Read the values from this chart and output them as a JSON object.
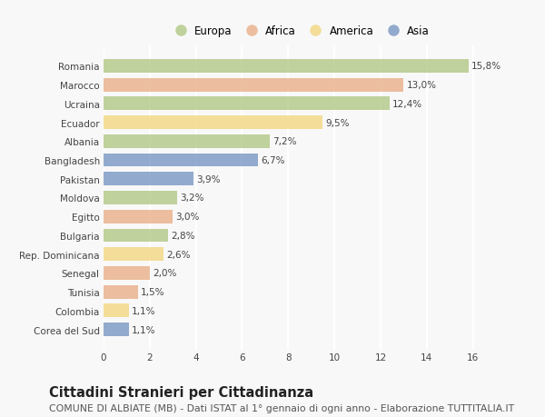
{
  "countries": [
    "Romania",
    "Marocco",
    "Ucraina",
    "Ecuador",
    "Albania",
    "Bangladesh",
    "Pakistan",
    "Moldova",
    "Egitto",
    "Bulgaria",
    "Rep. Dominicana",
    "Senegal",
    "Tunisia",
    "Colombia",
    "Corea del Sud"
  ],
  "values": [
    15.8,
    13.0,
    12.4,
    9.5,
    7.2,
    6.7,
    3.9,
    3.2,
    3.0,
    2.8,
    2.6,
    2.0,
    1.5,
    1.1,
    1.1
  ],
  "labels": [
    "15,8%",
    "13,0%",
    "12,4%",
    "9,5%",
    "7,2%",
    "6,7%",
    "3,9%",
    "3,2%",
    "3,0%",
    "2,8%",
    "2,6%",
    "2,0%",
    "1,5%",
    "1,1%",
    "1,1%"
  ],
  "continents": [
    "Europa",
    "Africa",
    "Europa",
    "America",
    "Europa",
    "Asia",
    "Asia",
    "Europa",
    "Africa",
    "Europa",
    "America",
    "Africa",
    "Africa",
    "America",
    "Asia"
  ],
  "colors": {
    "Europa": "#adc57e",
    "Africa": "#e8aa82",
    "America": "#f2d478",
    "Asia": "#7090c0"
  },
  "legend_order": [
    "Europa",
    "Africa",
    "America",
    "Asia"
  ],
  "title": "Cittadini Stranieri per Cittadinanza",
  "subtitle": "COMUNE DI ALBIATE (MB) - Dati ISTAT al 1° gennaio di ogni anno - Elaborazione TUTTITALIA.IT",
  "xlim": [
    0,
    17
  ],
  "xticks": [
    0,
    2,
    4,
    6,
    8,
    10,
    12,
    14,
    16
  ],
  "bg_color": "#f8f8f8",
  "grid_color": "#ffffff",
  "bar_height": 0.72,
  "title_fontsize": 10.5,
  "subtitle_fontsize": 7.8,
  "label_fontsize": 7.5,
  "tick_fontsize": 7.5,
  "legend_fontsize": 8.5
}
